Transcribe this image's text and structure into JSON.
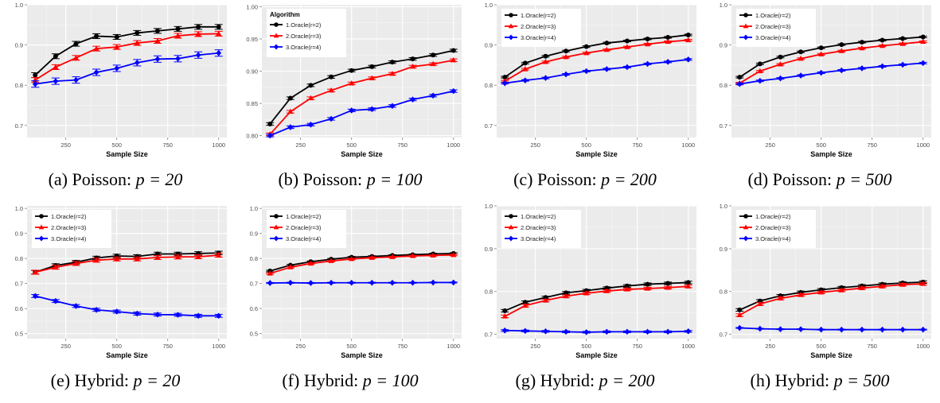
{
  "x_ticks": [
    250,
    500,
    750,
    1000
  ],
  "xlabel": "Sample Size",
  "colors": [
    "#000000",
    "#ff0000",
    "#0000ff"
  ],
  "chart_data": [
    {
      "type": "line",
      "caption": "(a) Poisson: ",
      "math": "p = 20",
      "ylim": [
        0.67,
        1.0
      ],
      "y_ticks": [
        0.7,
        0.8,
        0.9,
        1.0
      ],
      "legend_title": "",
      "legend": [],
      "x": [
        100,
        200,
        300,
        400,
        500,
        600,
        700,
        800,
        900,
        1000
      ],
      "series": [
        {
          "values": [
            0.825,
            0.872,
            0.903,
            0.922,
            0.92,
            0.93,
            0.935,
            0.94,
            0.945,
            0.945
          ],
          "err": 0.006
        },
        {
          "values": [
            0.813,
            0.845,
            0.868,
            0.891,
            0.895,
            0.905,
            0.91,
            0.923,
            0.927,
            0.928
          ],
          "err": 0.006
        },
        {
          "values": [
            0.803,
            0.81,
            0.813,
            0.832,
            0.842,
            0.856,
            0.865,
            0.866,
            0.875,
            0.88
          ],
          "err": 0.008
        }
      ]
    },
    {
      "type": "line",
      "caption": "(b) Poisson: ",
      "math": "p = 100",
      "ylim": [
        0.797,
        1.003
      ],
      "y_ticks": [
        0.8,
        0.85,
        0.9,
        0.95,
        1.0
      ],
      "legend_title": "Algorithm",
      "legend": [
        "1.Oracle(r=2)",
        "2.Oracle(r=3)",
        "3.Oracle(r=4)"
      ],
      "x": [
        100,
        200,
        300,
        400,
        500,
        600,
        700,
        800,
        900,
        1000
      ],
      "series": [
        {
          "values": [
            0.818,
            0.858,
            0.878,
            0.891,
            0.901,
            0.907,
            0.914,
            0.919,
            0.925,
            0.932
          ],
          "err": 0.002
        },
        {
          "values": [
            0.802,
            0.837,
            0.858,
            0.87,
            0.881,
            0.889,
            0.896,
            0.907,
            0.911,
            0.917
          ],
          "err": 0.002
        },
        {
          "values": [
            0.8,
            0.813,
            0.817,
            0.826,
            0.839,
            0.841,
            0.846,
            0.856,
            0.862,
            0.869
          ],
          "err": 0.002
        }
      ]
    },
    {
      "type": "line",
      "caption": "(c) Poisson: ",
      "math": "p = 200",
      "ylim": [
        0.67,
        1.0
      ],
      "y_ticks": [
        0.7,
        0.8,
        0.9,
        1.0
      ],
      "legend_title": "",
      "legend": [
        "1.Oracle(r=2)",
        "2.Oracle(r=3)",
        "3.Oracle(r=4)"
      ],
      "x": [
        100,
        200,
        300,
        400,
        500,
        600,
        700,
        800,
        900,
        1000
      ],
      "series": [
        {
          "values": [
            0.82,
            0.855,
            0.872,
            0.885,
            0.896,
            0.905,
            0.91,
            0.915,
            0.919,
            0.925
          ],
          "err": 0.002
        },
        {
          "values": [
            0.81,
            0.84,
            0.858,
            0.87,
            0.88,
            0.888,
            0.895,
            0.902,
            0.908,
            0.912
          ],
          "err": 0.002
        },
        {
          "values": [
            0.805,
            0.812,
            0.818,
            0.827,
            0.835,
            0.84,
            0.845,
            0.853,
            0.858,
            0.864
          ],
          "err": 0.002
        }
      ]
    },
    {
      "type": "line",
      "caption": "(d) Poisson: ",
      "math": "p = 500",
      "ylim": [
        0.67,
        1.0
      ],
      "y_ticks": [
        0.7,
        0.8,
        0.9,
        1.0
      ],
      "legend_title": "",
      "legend": [
        "1.Oracle(r=2)",
        "2.Oracle(r=3)",
        "3.Oracle(r=4)"
      ],
      "x": [
        100,
        200,
        300,
        400,
        500,
        600,
        700,
        800,
        900,
        1000
      ],
      "series": [
        {
          "values": [
            0.82,
            0.853,
            0.87,
            0.883,
            0.893,
            0.901,
            0.907,
            0.912,
            0.916,
            0.92
          ],
          "err": 0.002
        },
        {
          "values": [
            0.805,
            0.835,
            0.852,
            0.866,
            0.877,
            0.885,
            0.892,
            0.898,
            0.903,
            0.908
          ],
          "err": 0.002
        },
        {
          "values": [
            0.803,
            0.811,
            0.817,
            0.824,
            0.831,
            0.837,
            0.842,
            0.847,
            0.851,
            0.855
          ],
          "err": 0.002
        }
      ]
    },
    {
      "type": "line",
      "caption": "(e) Hybrid: ",
      "math": "p = 20",
      "ylim": [
        0.48,
        1.01
      ],
      "y_ticks": [
        0.5,
        0.6,
        0.7,
        0.8,
        0.9,
        1.0
      ],
      "legend_title": "",
      "legend": [
        "1.Oracle(r=2)",
        "2.Oracle(r=3)",
        "3.Oracle(r=4)"
      ],
      "x": [
        100,
        200,
        300,
        400,
        500,
        600,
        700,
        800,
        900,
        1000
      ],
      "series": [
        {
          "values": [
            0.745,
            0.772,
            0.785,
            0.802,
            0.81,
            0.808,
            0.818,
            0.818,
            0.82,
            0.822
          ],
          "err": 0.007
        },
        {
          "values": [
            0.745,
            0.765,
            0.78,
            0.793,
            0.798,
            0.798,
            0.804,
            0.806,
            0.807,
            0.813
          ],
          "err": 0.008
        },
        {
          "values": [
            0.65,
            0.63,
            0.61,
            0.595,
            0.588,
            0.58,
            0.576,
            0.575,
            0.571,
            0.571
          ],
          "err": 0.006
        }
      ]
    },
    {
      "type": "line",
      "caption": "(f) Hybrid: ",
      "math": "p = 100",
      "ylim": [
        0.48,
        1.01
      ],
      "y_ticks": [
        0.5,
        0.6,
        0.7,
        0.8,
        0.9,
        1.0
      ],
      "legend_title": "",
      "legend": [
        "1.Oracle(r=2)",
        "2.Oracle(r=3)",
        "3.Oracle(r=4)"
      ],
      "x": [
        100,
        200,
        300,
        400,
        500,
        600,
        700,
        800,
        900,
        1000
      ],
      "series": [
        {
          "values": [
            0.75,
            0.773,
            0.787,
            0.797,
            0.805,
            0.808,
            0.812,
            0.815,
            0.818,
            0.82
          ],
          "err": 0.003
        },
        {
          "values": [
            0.74,
            0.765,
            0.78,
            0.79,
            0.798,
            0.803,
            0.806,
            0.81,
            0.812,
            0.814
          ],
          "err": 0.003
        },
        {
          "values": [
            0.702,
            0.703,
            0.702,
            0.703,
            0.703,
            0.703,
            0.703,
            0.703,
            0.704,
            0.704
          ],
          "err": 0.002
        }
      ]
    },
    {
      "type": "line",
      "caption": "(g) Hybrid: ",
      "math": "p = 200",
      "ylim": [
        0.69,
        1.0
      ],
      "y_ticks": [
        0.7,
        0.8,
        0.9,
        1.0
      ],
      "legend_title": "",
      "legend": [
        "1.Oracle(r=2)",
        "2.Oracle(r=3)",
        "3.Oracle(r=4)"
      ],
      "x": [
        100,
        200,
        300,
        400,
        500,
        600,
        700,
        800,
        900,
        1000
      ],
      "series": [
        {
          "values": [
            0.755,
            0.775,
            0.786,
            0.797,
            0.802,
            0.808,
            0.813,
            0.817,
            0.819,
            0.821
          ],
          "err": 0.003
        },
        {
          "values": [
            0.742,
            0.767,
            0.779,
            0.789,
            0.796,
            0.801,
            0.805,
            0.807,
            0.809,
            0.812
          ],
          "err": 0.003
        },
        {
          "values": [
            0.709,
            0.708,
            0.707,
            0.706,
            0.705,
            0.706,
            0.706,
            0.706,
            0.706,
            0.707
          ],
          "err": 0.002
        }
      ]
    },
    {
      "type": "line",
      "caption": "(h) Hybrid: ",
      "math": "p = 500",
      "ylim": [
        0.69,
        1.0
      ],
      "y_ticks": [
        0.7,
        0.8,
        0.9,
        1.0
      ],
      "legend_title": "",
      "legend": [
        "1.Oracle(r=2)",
        "2.Oracle(r=3)",
        "3.Oracle(r=4)"
      ],
      "x": [
        100,
        200,
        300,
        400,
        500,
        600,
        700,
        800,
        900,
        1000
      ],
      "series": [
        {
          "values": [
            0.757,
            0.778,
            0.79,
            0.798,
            0.804,
            0.809,
            0.813,
            0.817,
            0.82,
            0.822
          ],
          "err": 0.003
        },
        {
          "values": [
            0.745,
            0.771,
            0.784,
            0.792,
            0.798,
            0.803,
            0.808,
            0.812,
            0.816,
            0.818
          ],
          "err": 0.003
        },
        {
          "values": [
            0.715,
            0.713,
            0.712,
            0.712,
            0.711,
            0.711,
            0.711,
            0.711,
            0.711,
            0.711
          ],
          "err": 0.001
        }
      ]
    }
  ]
}
